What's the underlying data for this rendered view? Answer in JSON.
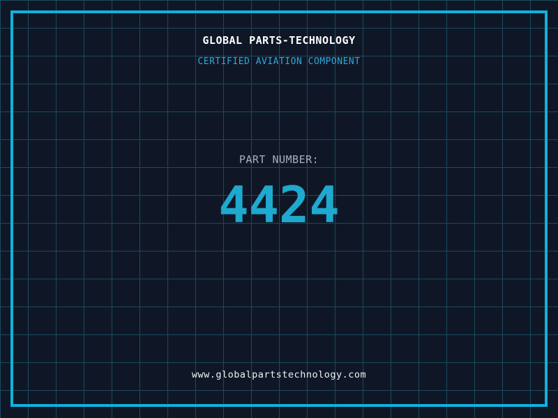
{
  "header": {
    "title": "GLOBAL PARTS-TECHNOLOGY",
    "subtitle": "CERTIFIED AVIATION COMPONENT"
  },
  "part": {
    "label": "PART NUMBER:",
    "number": "4424"
  },
  "footer": {
    "url": "www.globalpartstechnology.com"
  },
  "colors": {
    "background": "#0F1726",
    "grid_line": "#1A4A5E",
    "frame": "#0FB2DC",
    "title": "#FFFFFF",
    "subtitle": "#2FA9DD",
    "part_label": "#A7B1BD",
    "part_number": "#1FA9CF",
    "url": "#F0F3F5"
  }
}
